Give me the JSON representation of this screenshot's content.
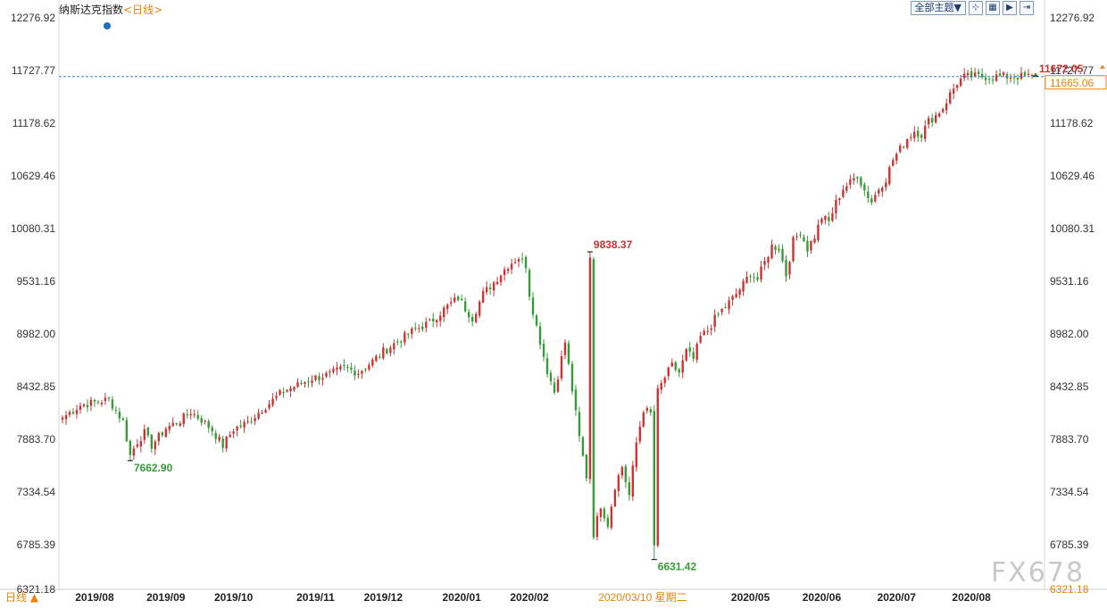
{
  "header": {
    "title": "纳斯达克指数",
    "period": "<日线>",
    "theme_button": "全部主题▼",
    "tools": [
      {
        "name": "crosshair-tool-icon",
        "glyph": "⊹"
      },
      {
        "name": "grid-tool-icon",
        "glyph": "▦"
      },
      {
        "name": "play-tool-icon",
        "glyph": "▶"
      },
      {
        "name": "export-tool-icon",
        "glyph": "⇥"
      }
    ]
  },
  "footer": {
    "period": "日线 ▲"
  },
  "watermark": "FX678",
  "colors": {
    "up": "#cc3333",
    "down": "#3a9a3a",
    "accent": "#e8830c",
    "guide": "#3a7fc4"
  },
  "chart_data": {
    "type": "candlestick",
    "y_min": 6321.18,
    "y_max": 12276.92,
    "y_ticks": [
      12276.92,
      11727.77,
      11178.62,
      10629.46,
      10080.31,
      9531.16,
      8982.0,
      8432.85,
      7883.7,
      7334.54,
      6785.39,
      6321.18
    ],
    "x_labels": [
      "2019/08",
      "2019/09",
      "2019/10",
      "2019/11",
      "2019/12",
      "2020/01",
      "2020/02",
      "20",
      "2020/05",
      "2020/06",
      "2020/07",
      "2020/08"
    ],
    "x_label_index": [
      9,
      29,
      48,
      71,
      90,
      112,
      131,
      151,
      193,
      213,
      234,
      255
    ],
    "cursor_label": "2020/03/10 星期二",
    "cursor_index": 151,
    "current_value": "11665.06",
    "current_price": 11665.06,
    "high_mark": {
      "label": "11672.05",
      "value": 11672.05,
      "index": 273
    },
    "peak_mark": {
      "label": "9838.37",
      "value": 9838.37,
      "index": 148
    },
    "low_mark_1": {
      "label": "7662.90",
      "value": 7662.9,
      "index": 19
    },
    "low_mark_2": {
      "label": "6631.42",
      "value": 6631.42,
      "index": 166
    },
    "last_close": 11665.06,
    "anchors": [
      [
        0,
        8110
      ],
      [
        5,
        8240
      ],
      [
        13,
        8300
      ],
      [
        17,
        8070
      ],
      [
        19,
        7720
      ],
      [
        21,
        7860
      ],
      [
        23,
        7950
      ],
      [
        25,
        7820
      ],
      [
        29,
        8000
      ],
      [
        33,
        8080
      ],
      [
        36,
        8170
      ],
      [
        39,
        8090
      ],
      [
        42,
        7980
      ],
      [
        45,
        7820
      ],
      [
        48,
        7990
      ],
      [
        52,
        8060
      ],
      [
        56,
        8200
      ],
      [
        59,
        8290
      ],
      [
        62,
        8390
      ],
      [
        66,
        8450
      ],
      [
        70,
        8520
      ],
      [
        75,
        8560
      ],
      [
        79,
        8630
      ],
      [
        83,
        8580
      ],
      [
        87,
        8700
      ],
      [
        90,
        8800
      ],
      [
        95,
        8930
      ],
      [
        99,
        9030
      ],
      [
        103,
        9100
      ],
      [
        107,
        9240
      ],
      [
        111,
        9360
      ],
      [
        113,
        9250
      ],
      [
        115,
        9150
      ],
      [
        118,
        9400
      ],
      [
        121,
        9520
      ],
      [
        125,
        9700
      ],
      [
        128,
        9780
      ],
      [
        130,
        9700
      ],
      [
        131,
        9400
      ],
      [
        133,
        9060
      ],
      [
        136,
        8600
      ],
      [
        138,
        8380
      ],
      [
        141,
        8900
      ],
      [
        143,
        8400
      ],
      [
        145,
        7900
      ],
      [
        147,
        7500
      ],
      [
        149,
        6900
      ],
      [
        151,
        7200
      ],
      [
        153,
        7000
      ],
      [
        155,
        7400
      ],
      [
        157,
        7600
      ],
      [
        159,
        7300
      ],
      [
        161,
        7850
      ],
      [
        163,
        8200
      ],
      [
        165,
        8150
      ],
      [
        167,
        8380
      ],
      [
        169,
        8530
      ],
      [
        171,
        8650
      ],
      [
        173,
        8580
      ],
      [
        175,
        8800
      ],
      [
        177,
        8720
      ],
      [
        179,
        8950
      ],
      [
        181,
        9020
      ],
      [
        183,
        9140
      ],
      [
        185,
        9230
      ],
      [
        188,
        9350
      ],
      [
        191,
        9500
      ],
      [
        193,
        9620
      ],
      [
        195,
        9550
      ],
      [
        197,
        9730
      ],
      [
        199,
        9900
      ],
      [
        201,
        9880
      ],
      [
        203,
        9600
      ],
      [
        205,
        9950
      ],
      [
        207,
        10050
      ],
      [
        209,
        9870
      ],
      [
        211,
        10000
      ],
      [
        213,
        10200
      ],
      [
        215,
        10150
      ],
      [
        217,
        10350
      ],
      [
        219,
        10500
      ],
      [
        221,
        10560
      ],
      [
        223,
        10640
      ],
      [
        225,
        10480
      ],
      [
        227,
        10360
      ],
      [
        229,
        10500
      ],
      [
        231,
        10600
      ],
      [
        233,
        10800
      ],
      [
        235,
        10910
      ],
      [
        237,
        11020
      ],
      [
        239,
        11100
      ],
      [
        241,
        11060
      ],
      [
        243,
        11200
      ],
      [
        245,
        11260
      ],
      [
        247,
        11340
      ],
      [
        249,
        11480
      ],
      [
        251,
        11600
      ],
      [
        253,
        11660
      ],
      [
        255,
        11665.06
      ]
    ]
  }
}
